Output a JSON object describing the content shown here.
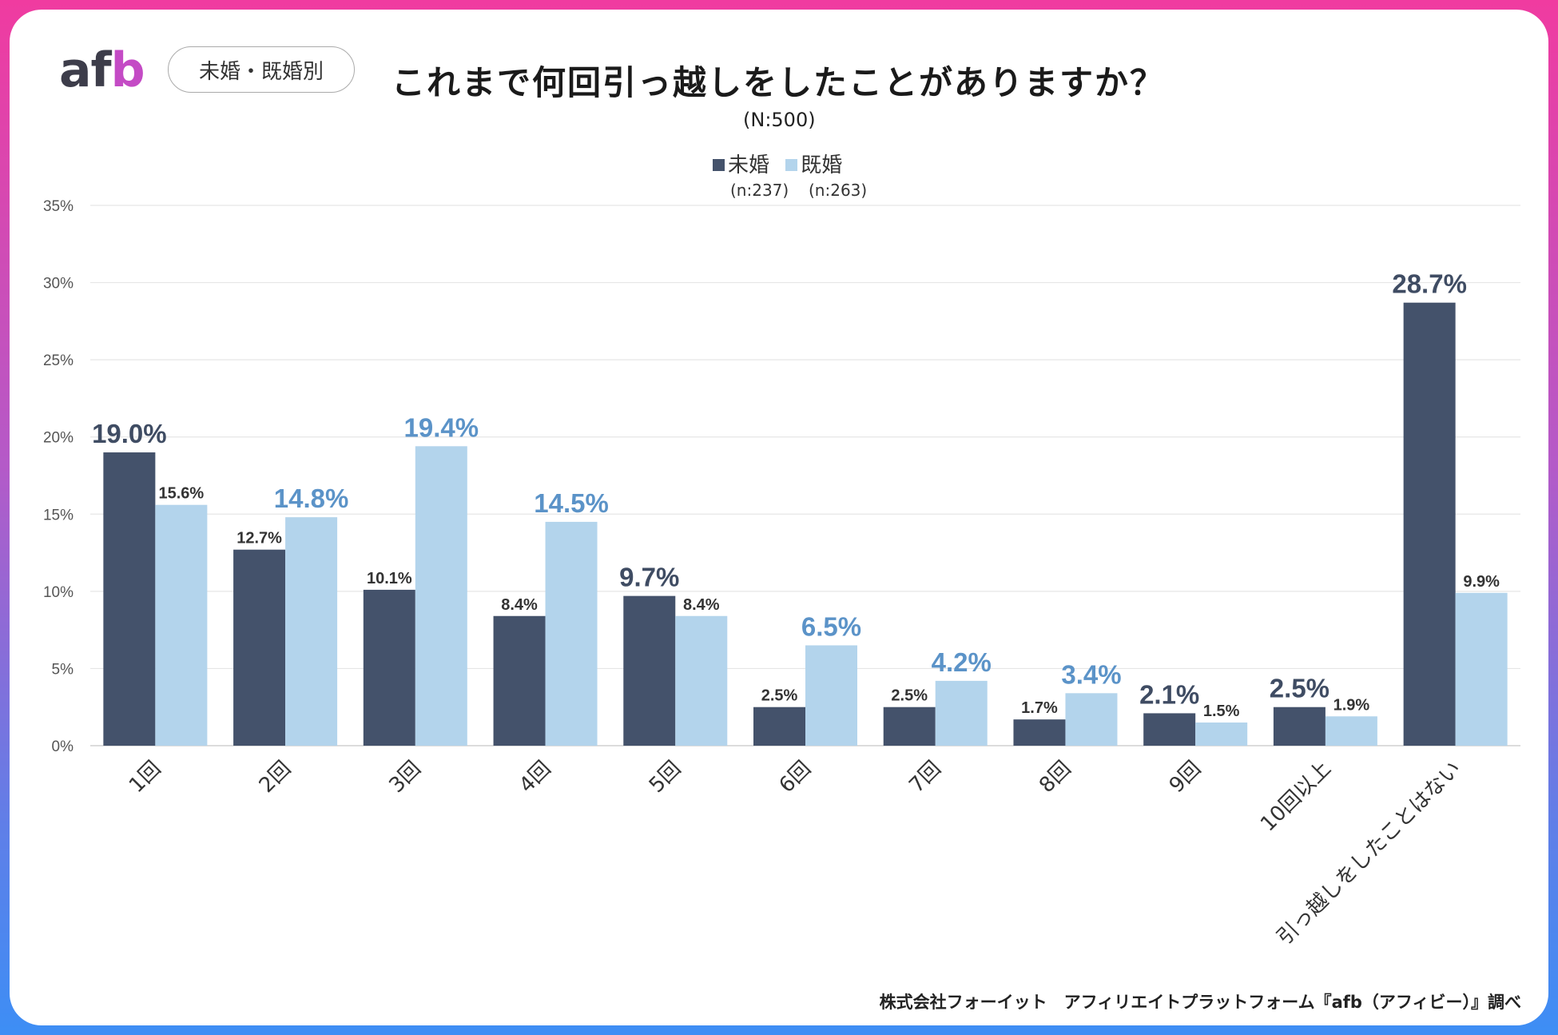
{
  "logo": {
    "prefix": "af",
    "suffix": "b"
  },
  "category_badge": "未婚・既婚別",
  "chart_data": {
    "type": "bar",
    "title": "これまで何回引っ越しをしたことがありますか？",
    "subtitle": "(N:500)",
    "categories": [
      "1回",
      "2回",
      "3回",
      "4回",
      "5回",
      "6回",
      "7回",
      "8回",
      "9回",
      "10回以上",
      "引っ越しをしたことはない"
    ],
    "series": [
      {
        "name": "未婚",
        "n_label": "(n:237)",
        "color": "#44526b",
        "values": [
          19.0,
          12.7,
          10.1,
          8.4,
          9.7,
          2.5,
          2.5,
          1.7,
          2.1,
          2.5,
          28.7
        ]
      },
      {
        "name": "既婚",
        "n_label": "(n:263)",
        "color": "#b3d4ec",
        "values": [
          15.6,
          14.8,
          19.4,
          14.5,
          8.4,
          6.5,
          4.2,
          3.4,
          1.5,
          1.9,
          9.9
        ]
      }
    ],
    "highlight_series_index": [
      0,
      1,
      1,
      1,
      0,
      1,
      1,
      1,
      0,
      0,
      0
    ],
    "highlight_colors": [
      "#3f4c63",
      "#5b93c8"
    ],
    "y_ticks": [
      "0%",
      "5%",
      "10%",
      "15%",
      "20%",
      "25%",
      "30%",
      "35%"
    ],
    "ylim": [
      0,
      35
    ],
    "grid": true,
    "legend_position": "top-center"
  },
  "source": "株式会社フォーイット　アフィリエイトプラットフォーム『afb（アフィビー）』調べ"
}
